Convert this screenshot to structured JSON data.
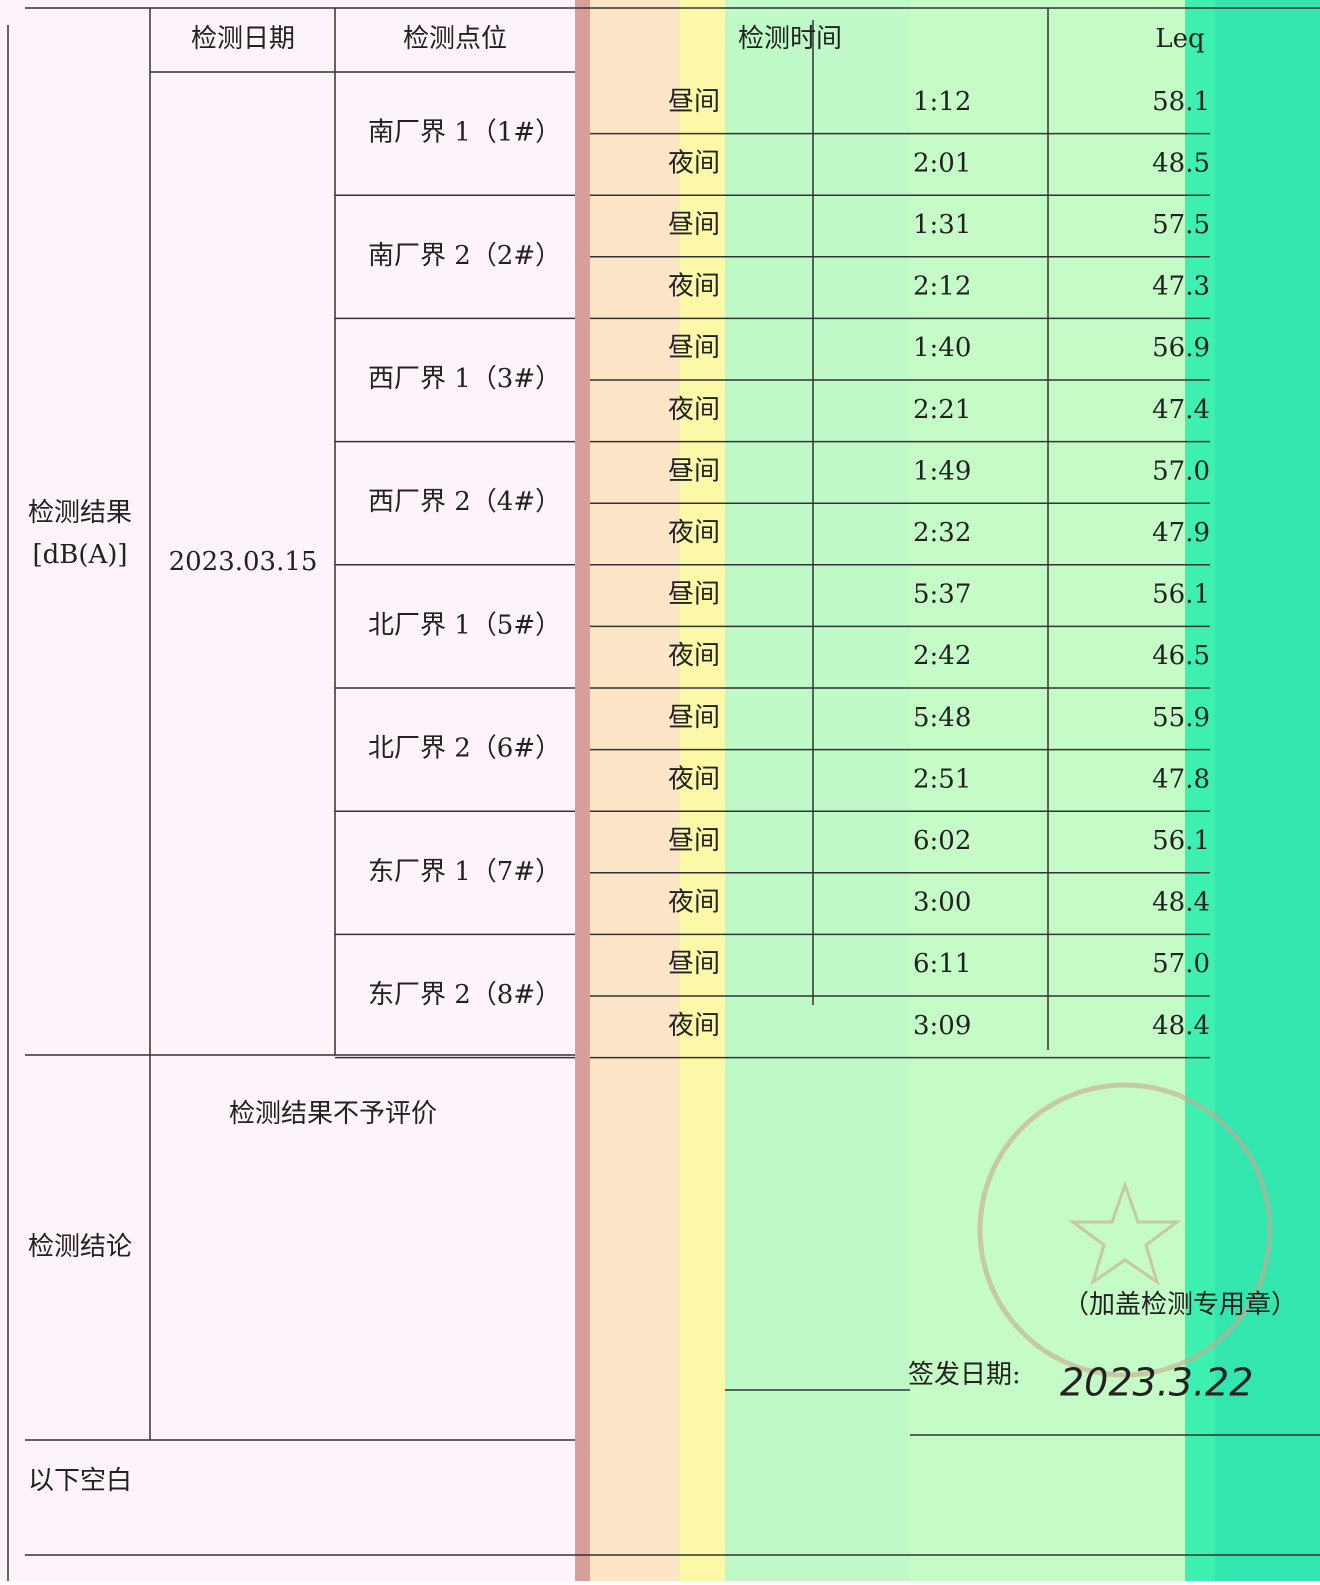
{
  "table": {
    "columns": [
      "检测日期",
      "检测点位",
      "检测时间",
      "Leq"
    ],
    "result_label": "检测结果",
    "result_unit": "[dB(A)]",
    "date": "2023.03.15",
    "points": [
      "南厂界 1（1#）",
      "南厂界 2（2#）",
      "西厂界 1（3#）",
      "西厂界 2（4#）",
      "北厂界 1（5#）",
      "北厂界 2（6#）",
      "东厂界 1（7#）",
      "东厂界 2（8#）"
    ],
    "rows": [
      {
        "period": "昼间",
        "time": "1:12",
        "leq": "58.1"
      },
      {
        "period": "夜间",
        "time": "2:01",
        "leq": "48.5"
      },
      {
        "period": "昼间",
        "time": "1:31",
        "leq": "57.5"
      },
      {
        "period": "夜间",
        "time": "2:12",
        "leq": "47.3"
      },
      {
        "period": "昼间",
        "time": "1:40",
        "leq": "56.9"
      },
      {
        "period": "夜间",
        "time": "2:21",
        "leq": "47.4"
      },
      {
        "period": "昼间",
        "time": "1:49",
        "leq": "57.0"
      },
      {
        "period": "夜间",
        "time": "2:32",
        "leq": "47.9"
      },
      {
        "period": "昼间",
        "time": "5:37",
        "leq": "56.1"
      },
      {
        "period": "夜间",
        "time": "2:42",
        "leq": "46.5"
      },
      {
        "period": "昼间",
        "time": "5:48",
        "leq": "55.9"
      },
      {
        "period": "夜间",
        "time": "2:51",
        "leq": "47.8"
      },
      {
        "period": "昼间",
        "time": "6:02",
        "leq": "56.1"
      },
      {
        "period": "夜间",
        "time": "3:00",
        "leq": "48.4"
      },
      {
        "period": "昼间",
        "time": "6:11",
        "leq": "57.0"
      },
      {
        "period": "夜间",
        "time": "3:09",
        "leq": "48.4"
      }
    ]
  },
  "conclusion": {
    "label": "检测结论",
    "text": "检测结果不予评价"
  },
  "stamp": "（加盖检测专用章）",
  "issue_date_label": "签发日期:",
  "issue_date": "2023.3.22",
  "footer": "以下空白"
}
